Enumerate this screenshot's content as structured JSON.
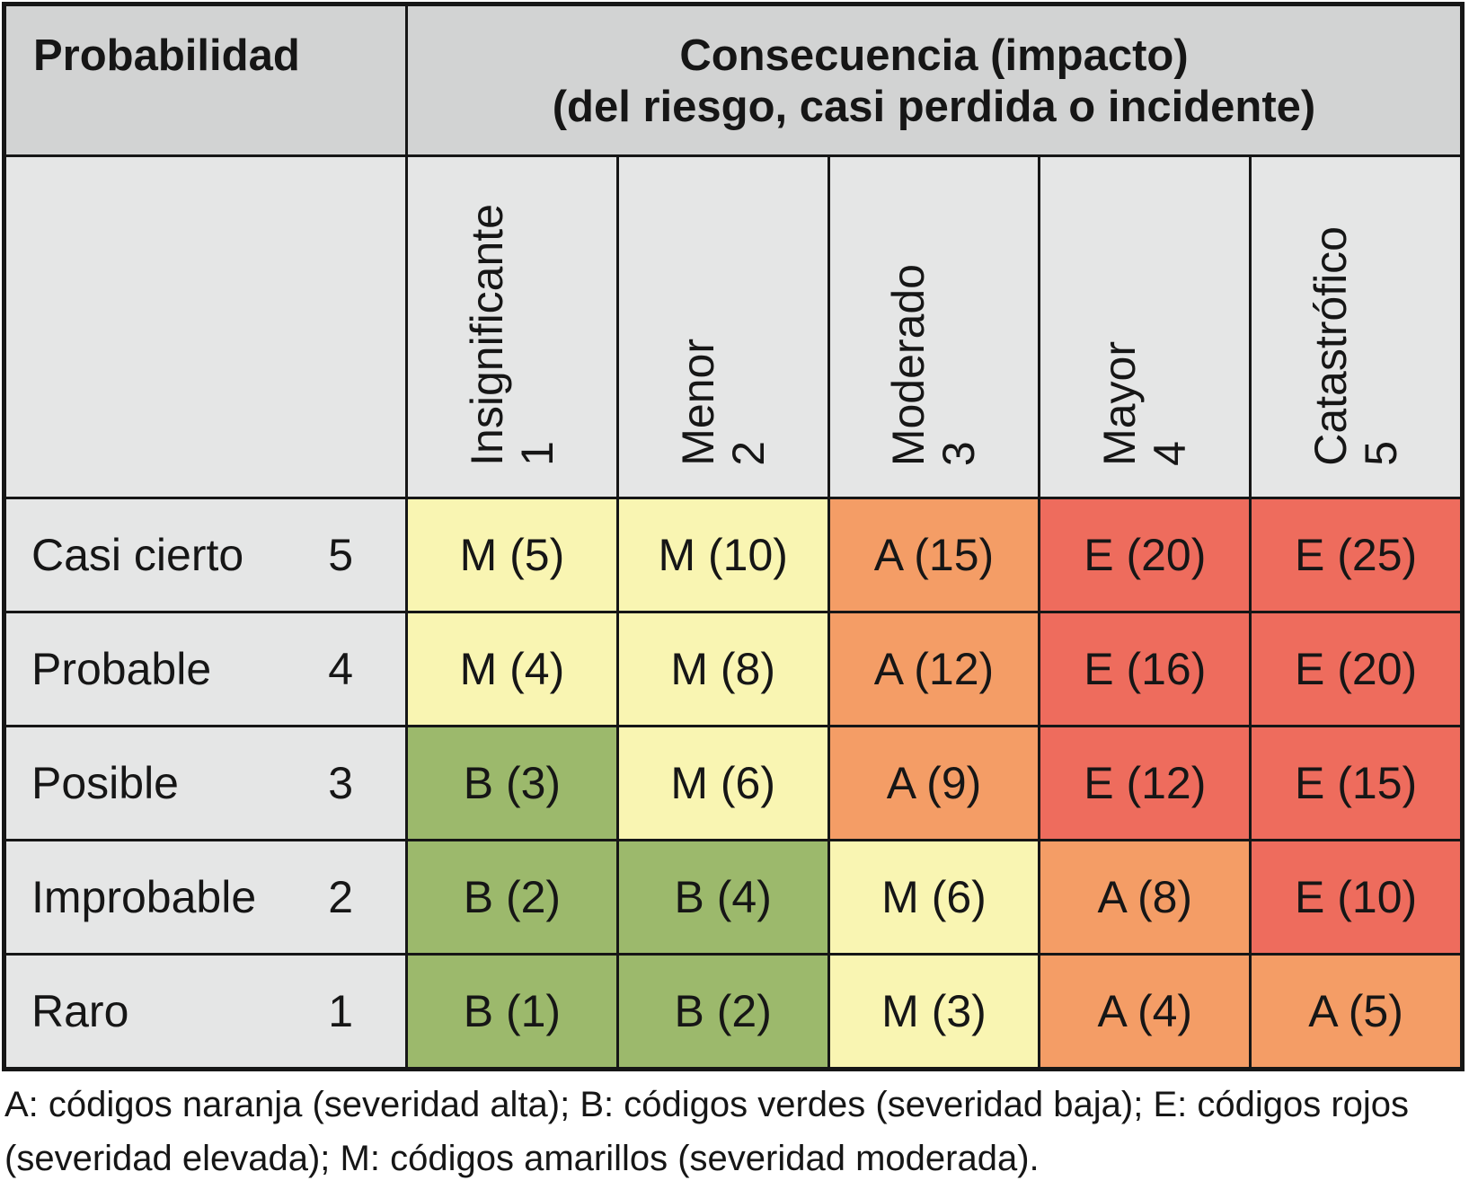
{
  "header": {
    "probability": "Probabilidad",
    "consequence_line1": "Consecuencia (impacto)",
    "consequence_line2": "(del riesgo, casi perdida o incidente)"
  },
  "columns": [
    {
      "label": "Insignificante",
      "number": "1"
    },
    {
      "label": "Menor",
      "number": "2"
    },
    {
      "label": "Moderado",
      "number": "3"
    },
    {
      "label": "Mayor",
      "number": "4"
    },
    {
      "label": "Catastrófico",
      "number": "5"
    }
  ],
  "rows": [
    {
      "label": "Casi cierto",
      "number": "5",
      "cells": [
        {
          "code": "M",
          "text": "M (5)"
        },
        {
          "code": "M",
          "text": "M (10)"
        },
        {
          "code": "A",
          "text": "A (15)"
        },
        {
          "code": "E",
          "text": "E (20)"
        },
        {
          "code": "E",
          "text": "E (25)"
        }
      ]
    },
    {
      "label": "Probable",
      "number": "4",
      "cells": [
        {
          "code": "M",
          "text": "M (4)"
        },
        {
          "code": "M",
          "text": "M (8)"
        },
        {
          "code": "A",
          "text": "A (12)"
        },
        {
          "code": "E",
          "text": "E (16)"
        },
        {
          "code": "E",
          "text": "E (20)"
        }
      ]
    },
    {
      "label": "Posible",
      "number": "3",
      "cells": [
        {
          "code": "B",
          "text": "B (3)"
        },
        {
          "code": "M",
          "text": "M (6)"
        },
        {
          "code": "A",
          "text": "A (9)"
        },
        {
          "code": "E",
          "text": "E (12)"
        },
        {
          "code": "E",
          "text": "E (15)"
        }
      ]
    },
    {
      "label": "Improbable",
      "number": "2",
      "cells": [
        {
          "code": "B",
          "text": "B (2)"
        },
        {
          "code": "B",
          "text": "B (4)"
        },
        {
          "code": "M",
          "text": "M (6)"
        },
        {
          "code": "A",
          "text": "A (8)"
        },
        {
          "code": "E",
          "text": "E (10)"
        }
      ]
    },
    {
      "label": "Raro",
      "number": "1",
      "cells": [
        {
          "code": "B",
          "text": "B (1)"
        },
        {
          "code": "B",
          "text": "B (2)"
        },
        {
          "code": "M",
          "text": "M (3)"
        },
        {
          "code": "A",
          "text": "A (4)"
        },
        {
          "code": "A",
          "text": "A (5)"
        }
      ]
    }
  ],
  "legend": {
    "text": "A: códigos naranja (severidad alta); B: códigos verdes (severidad baja); E: códigos rojos (severidad elevada); M: códigos amarillos (severidad moderada)."
  },
  "colors": {
    "M": "#F9F5B2",
    "B": "#9CB96C",
    "A": "#F49D66",
    "E": "#EE6C5D",
    "header_gray": "#D2D3D3",
    "subheader_gray": "#E5E6E6",
    "border": "#161616"
  },
  "chart_data": {
    "type": "heatmap",
    "title": "Consecuencia (impacto) (del riesgo, casi perdida o incidente)",
    "row_axis_label": "Probabilidad",
    "columns": [
      "Insignificante 1",
      "Menor 2",
      "Moderado 3",
      "Mayor 4",
      "Catastrófico 5"
    ],
    "rows": [
      "Casi cierto 5",
      "Probable 4",
      "Posible 3",
      "Improbable 2",
      "Raro 1"
    ],
    "values": [
      [
        5,
        10,
        15,
        20,
        25
      ],
      [
        4,
        8,
        12,
        16,
        20
      ],
      [
        3,
        6,
        9,
        12,
        15
      ],
      [
        2,
        4,
        6,
        8,
        10
      ],
      [
        1,
        2,
        3,
        4,
        5
      ]
    ],
    "codes": [
      [
        "M",
        "M",
        "A",
        "E",
        "E"
      ],
      [
        "M",
        "M",
        "A",
        "E",
        "E"
      ],
      [
        "B",
        "M",
        "A",
        "E",
        "E"
      ],
      [
        "B",
        "B",
        "M",
        "A",
        "E"
      ],
      [
        "B",
        "B",
        "M",
        "A",
        "A"
      ]
    ],
    "code_legend": {
      "A": "naranja (severidad alta)",
      "B": "verdes (severidad baja)",
      "E": "rojos (severidad elevada)",
      "M": "amarillos (severidad moderada)"
    },
    "legend_position": "bottom",
    "grid": true
  }
}
